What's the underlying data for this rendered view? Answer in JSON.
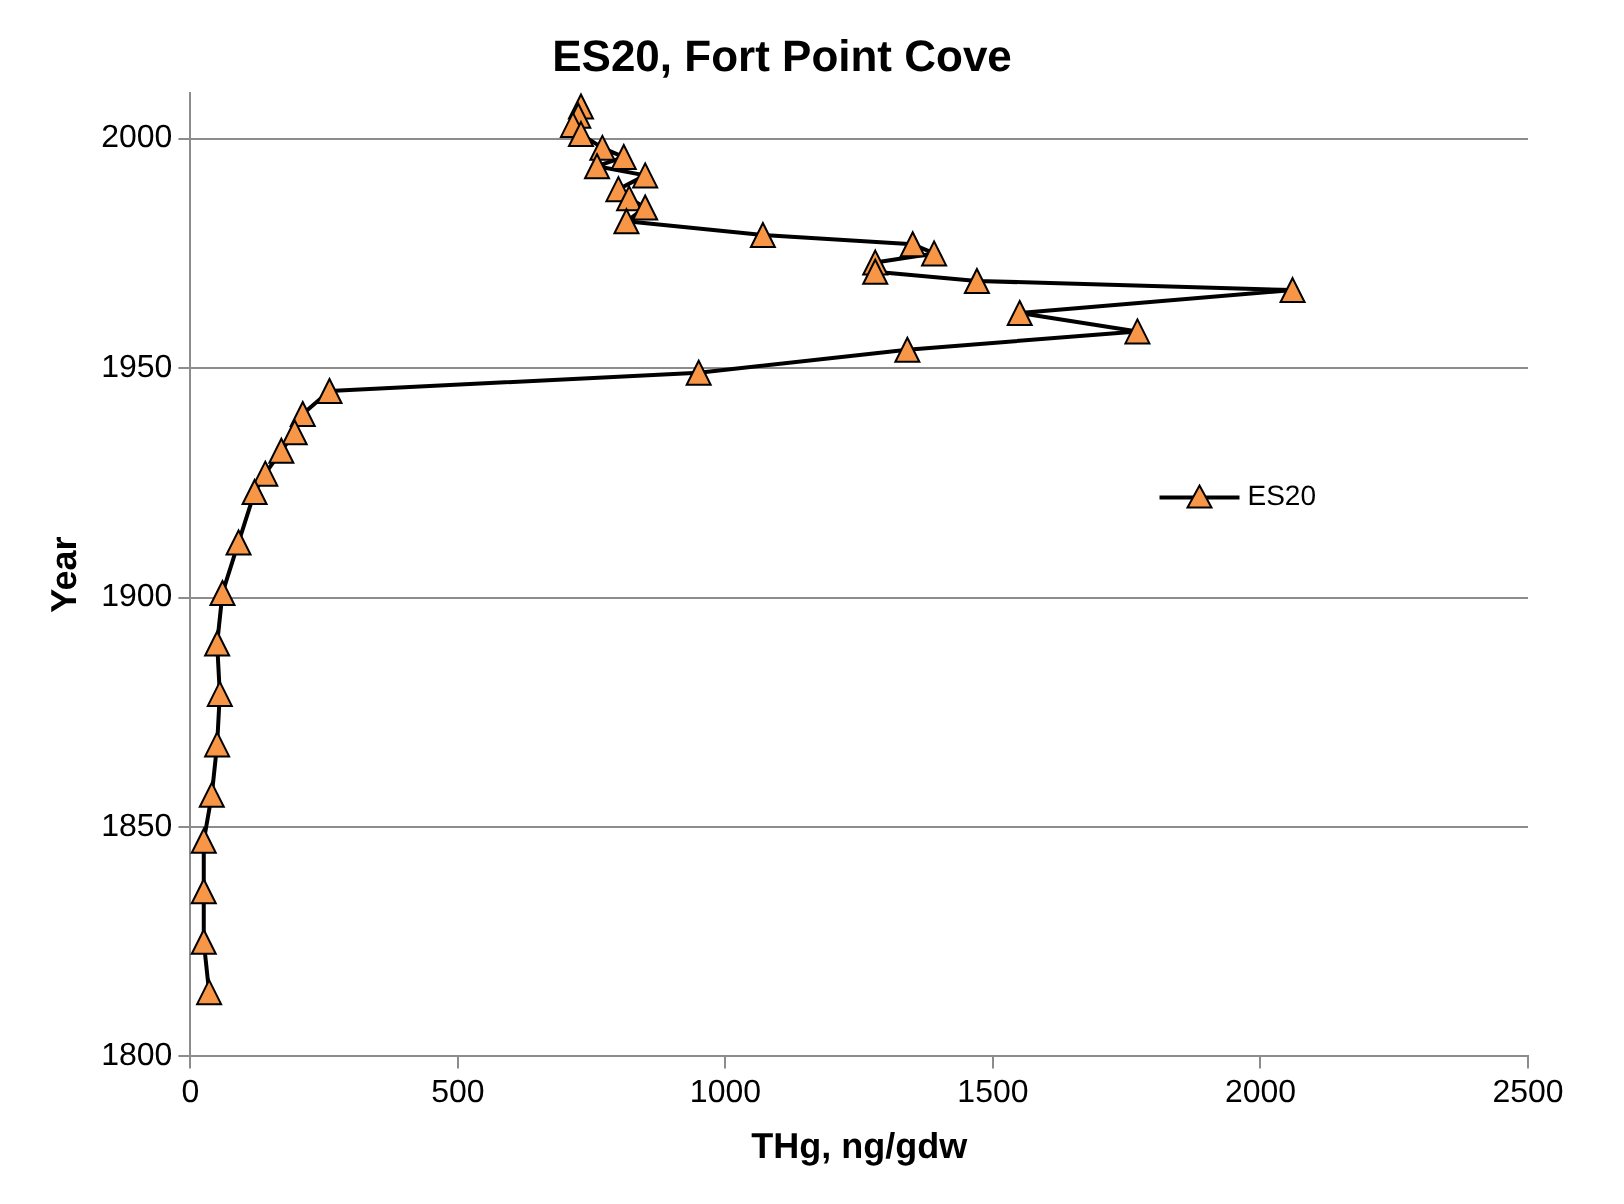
{
  "chart_data": {
    "type": "line",
    "orientation": "horizontal",
    "title": "ES20, Fort Point Cove",
    "xlabel": "THg, ng/gdw",
    "ylabel": "Year",
    "xlim": [
      0,
      2500
    ],
    "xticks": [
      0,
      500,
      1000,
      1500,
      2000,
      2500
    ],
    "ylim": [
      1800,
      2010
    ],
    "yticks": [
      1800,
      1850,
      1900,
      1950,
      2000
    ],
    "grid": "y",
    "legend": "right",
    "marker": "triangle",
    "line_style": "solid",
    "x": [
      2007,
      2005,
      2003,
      2001,
      1998,
      1996,
      1994,
      1992,
      1989,
      1987,
      1985,
      1982,
      1979,
      1977,
      1975,
      1973,
      1971,
      1969,
      1967,
      1962,
      1958,
      1954,
      1949,
      1945,
      1940,
      1936,
      1932,
      1927,
      1923,
      1912,
      1901,
      1890,
      1879,
      1868,
      1857,
      1847,
      1836,
      1825,
      1814
    ],
    "series": [
      {
        "name": "ES20",
        "color": "#f79646",
        "values": [
          730,
          725,
          715,
          730,
          770,
          810,
          760,
          850,
          800,
          820,
          850,
          815,
          1070,
          1350,
          1390,
          1280,
          1280,
          1470,
          2060,
          1550,
          1770,
          1340,
          950,
          260,
          210,
          195,
          170,
          140,
          120,
          90,
          60,
          50,
          55,
          50,
          40,
          25,
          25,
          25,
          35
        ]
      }
    ]
  }
}
